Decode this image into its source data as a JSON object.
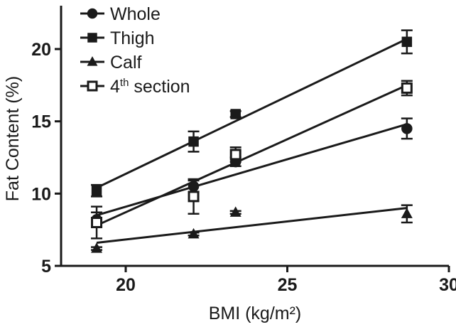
{
  "chart_data": {
    "type": "scatter",
    "xlabel": "BMI (kg/m²)",
    "ylabel": "Fat Content (%)",
    "xlim": [
      18,
      30
    ],
    "ylim": [
      5,
      23
    ],
    "x_ticks": [
      "20",
      "25",
      "30"
    ],
    "y_ticks": [
      "5",
      "10",
      "15",
      "20"
    ],
    "grid": false,
    "legend_position": "top-left",
    "series": [
      {
        "name": "Whole",
        "marker": "circle",
        "filled": true,
        "points": [
          {
            "x": 19.1,
            "y": 8.2,
            "err": 0.5
          },
          {
            "x": 22.1,
            "y": 10.5,
            "err": 0.4
          },
          {
            "x": 23.4,
            "y": 12.2,
            "err": 0.3
          },
          {
            "x": 28.7,
            "y": 14.5,
            "err": 0.7
          }
        ],
        "fit": [
          [
            19.1,
            8.5
          ],
          [
            28.7,
            14.8
          ]
        ]
      },
      {
        "name": "Thigh",
        "marker": "square",
        "filled": true,
        "points": [
          {
            "x": 19.1,
            "y": 10.2,
            "err": 0.4
          },
          {
            "x": 22.1,
            "y": 13.6,
            "err": 0.7
          },
          {
            "x": 23.4,
            "y": 15.5,
            "err": 0.2
          },
          {
            "x": 28.7,
            "y": 20.5,
            "err": 0.8
          }
        ],
        "fit": [
          [
            19.1,
            10.4
          ],
          [
            28.7,
            20.7
          ]
        ]
      },
      {
        "name": "Calf",
        "marker": "triangle",
        "filled": true,
        "points": [
          {
            "x": 19.1,
            "y": 6.2,
            "err": 0.1
          },
          {
            "x": 22.1,
            "y": 7.2,
            "err": 0.1
          },
          {
            "x": 23.4,
            "y": 8.7,
            "err": 0.1
          },
          {
            "x": 28.7,
            "y": 8.6,
            "err": 0.6
          }
        ],
        "fit": [
          [
            19.1,
            6.6
          ],
          [
            28.7,
            9.0
          ]
        ]
      },
      {
        "name": "4th section",
        "name_base": "4",
        "name_sup": "th",
        "name_rest": " section",
        "marker": "square",
        "filled": false,
        "points": [
          {
            "x": 19.1,
            "y": 8.0,
            "err": 1.1
          },
          {
            "x": 22.1,
            "y": 9.8,
            "err": 1.2
          },
          {
            "x": 23.4,
            "y": 12.7,
            "err": 0.5
          },
          {
            "x": 28.7,
            "y": 17.3,
            "err": 0.5
          }
        ],
        "fit": [
          [
            19.1,
            7.8
          ],
          [
            28.7,
            17.5
          ]
        ]
      }
    ]
  }
}
